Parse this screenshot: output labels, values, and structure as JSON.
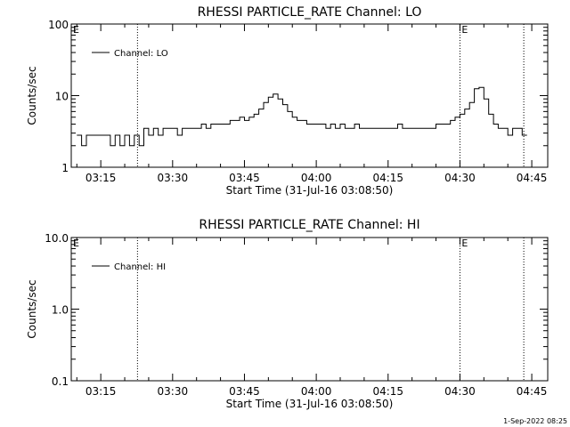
{
  "footer": {
    "timestamp": "1-Sep-2022 08:25"
  },
  "chart_data": [
    {
      "type": "line",
      "title": "RHESSI PARTICLE_RATE Channel: LO",
      "xlabel": "Start Time (31-Jul-16 03:08:50)",
      "ylabel": "Counts/sec",
      "y_scale": "log",
      "xlim": [
        "03:08:50",
        "04:48:20"
      ],
      "ylim": [
        1,
        100
      ],
      "x_tick_labels": [
        "03:15",
        "03:30",
        "03:45",
        "04:00",
        "04:15",
        "04:30",
        "04:45"
      ],
      "y_tick_labels": [
        "1",
        "10",
        "100"
      ],
      "legend": {
        "position": "top-left",
        "entries": [
          "Channel: LO"
        ]
      },
      "event_lines": [
        "03:22:40",
        "04:30:00",
        "04:43:20"
      ],
      "event_markers": [
        {
          "x": "03:08:50",
          "label": "E"
        },
        {
          "x": "04:30:00",
          "label": "E"
        }
      ],
      "series": [
        {
          "name": "Channel: LO",
          "x": [
            "03:10:00",
            "03:11:00",
            "03:12:00",
            "03:13:00",
            "03:14:00",
            "03:15:00",
            "03:16:00",
            "03:17:00",
            "03:18:00",
            "03:19:00",
            "03:20:00",
            "03:21:00",
            "03:22:00",
            "03:23:00",
            "03:24:00",
            "03:25:00",
            "03:26:00",
            "03:27:00",
            "03:28:00",
            "03:29:00",
            "03:30:00",
            "03:31:00",
            "03:32:00",
            "03:33:00",
            "03:34:00",
            "03:35:00",
            "03:36:00",
            "03:37:00",
            "03:38:00",
            "03:39:00",
            "03:40:00",
            "03:41:00",
            "03:42:00",
            "03:43:00",
            "03:44:00",
            "03:45:00",
            "03:46:00",
            "03:47:00",
            "03:48:00",
            "03:49:00",
            "03:50:00",
            "03:51:00",
            "03:52:00",
            "03:53:00",
            "03:54:00",
            "03:55:00",
            "03:56:00",
            "03:57:00",
            "03:58:00",
            "03:59:00",
            "04:00:00",
            "04:01:00",
            "04:02:00",
            "04:03:00",
            "04:04:00",
            "04:05:00",
            "04:06:00",
            "04:07:00",
            "04:08:00",
            "04:09:00",
            "04:10:00",
            "04:11:00",
            "04:12:00",
            "04:13:00",
            "04:14:00",
            "04:15:00",
            "04:16:00",
            "04:17:00",
            "04:18:00",
            "04:19:00",
            "04:20:00",
            "04:21:00",
            "04:22:00",
            "04:23:00",
            "04:24:00",
            "04:25:00",
            "04:26:00",
            "04:27:00",
            "04:28:00",
            "04:29:00",
            "04:30:00",
            "04:31:00",
            "04:32:00",
            "04:33:00",
            "04:34:00",
            "04:35:00",
            "04:36:00",
            "04:37:00",
            "04:38:00",
            "04:39:00",
            "04:40:00",
            "04:41:00",
            "04:42:00",
            "04:43:00"
          ],
          "values": [
            2.8,
            2.0,
            2.8,
            2.8,
            2.8,
            2.8,
            2.8,
            2.0,
            2.8,
            2.0,
            2.8,
            2.0,
            2.8,
            2.0,
            3.5,
            2.8,
            3.5,
            2.8,
            3.5,
            3.5,
            3.5,
            2.8,
            3.5,
            3.5,
            3.5,
            3.5,
            4.0,
            3.5,
            4.0,
            4.0,
            4.0,
            4.0,
            4.5,
            4.5,
            5.0,
            4.5,
            5.0,
            5.5,
            6.5,
            8.0,
            9.5,
            10.5,
            9.0,
            7.5,
            6.0,
            5.0,
            4.5,
            4.5,
            4.0,
            4.0,
            4.0,
            4.0,
            3.5,
            4.0,
            3.5,
            4.0,
            3.5,
            3.5,
            4.0,
            3.5,
            3.5,
            3.5,
            3.5,
            3.5,
            3.5,
            3.5,
            3.5,
            4.0,
            3.5,
            3.5,
            3.5,
            3.5,
            3.5,
            3.5,
            3.5,
            4.0,
            4.0,
            4.0,
            4.5,
            5.0,
            5.5,
            6.5,
            8.0,
            12.5,
            13.0,
            9.0,
            5.5,
            4.0,
            3.5,
            3.5,
            2.8,
            3.5,
            3.5,
            2.8
          ]
        }
      ]
    },
    {
      "type": "line",
      "title": "RHESSI PARTICLE_RATE Channel: HI",
      "xlabel": "Start Time (31-Jul-16 03:08:50)",
      "ylabel": "Counts/sec",
      "y_scale": "log",
      "xlim": [
        "03:08:50",
        "04:48:20"
      ],
      "ylim": [
        0.1,
        10
      ],
      "x_tick_labels": [
        "03:15",
        "03:30",
        "03:45",
        "04:00",
        "04:15",
        "04:30",
        "04:45"
      ],
      "y_tick_labels": [
        "0.1",
        "1.0",
        "10.0"
      ],
      "legend": {
        "position": "top-left",
        "entries": [
          "Channel: HI"
        ]
      },
      "event_lines": [
        "03:22:40",
        "04:30:00",
        "04:43:20"
      ],
      "event_markers": [
        {
          "x": "03:08:50",
          "label": "E"
        },
        {
          "x": "04:30:00",
          "label": "E"
        }
      ],
      "series": [
        {
          "name": "Channel: HI",
          "x": [],
          "values": []
        }
      ]
    }
  ]
}
